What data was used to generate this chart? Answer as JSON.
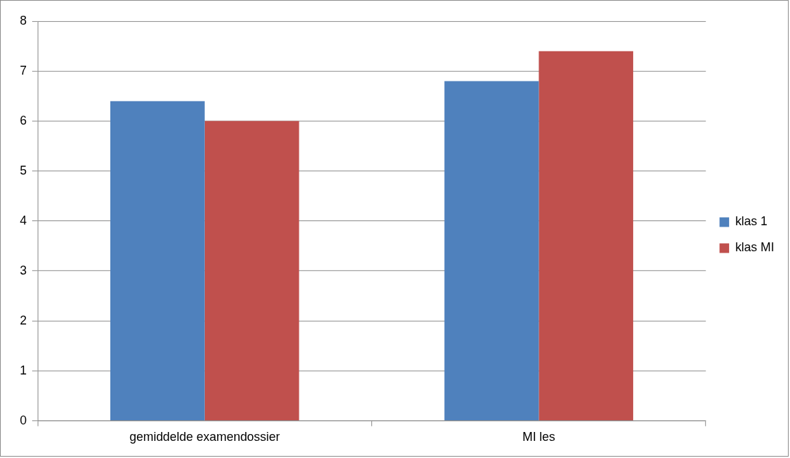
{
  "chart_data": {
    "type": "bar",
    "categories": [
      "gemiddelde examendossier",
      "MI les"
    ],
    "series": [
      {
        "name": "klas 1",
        "color": "#4f81bd",
        "values": [
          6.4,
          6.8
        ]
      },
      {
        "name": "klas MI",
        "color": "#c0504d",
        "values": [
          6.0,
          7.4
        ]
      }
    ],
    "ylim": [
      0,
      8
    ],
    "yticks": [
      0,
      1,
      2,
      3,
      4,
      5,
      6,
      7,
      8
    ],
    "grid": "y",
    "legend": "right"
  }
}
